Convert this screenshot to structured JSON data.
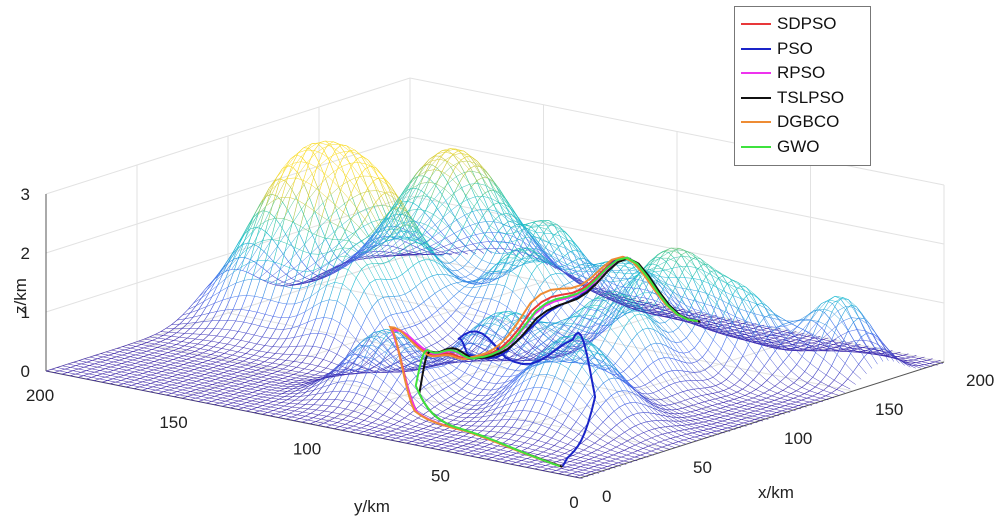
{
  "chart_data": {
    "type": "surface3d",
    "axes": {
      "x": {
        "label": "x/km",
        "range": [
          0,
          200
        ],
        "ticks": [
          0,
          50,
          100,
          150,
          200
        ]
      },
      "y": {
        "label": "y/km",
        "range": [
          0,
          200
        ],
        "ticks": [
          0,
          50,
          100,
          150,
          200
        ]
      },
      "z": {
        "label": "z/km",
        "range": [
          0,
          3
        ],
        "ticks": [
          0,
          1,
          2,
          3
        ]
      }
    },
    "grid": true,
    "legend_position": "top-right",
    "terrain_peaks": [
      {
        "x": 40,
        "y": 100,
        "h": 1.2,
        "s": 12
      },
      {
        "x": 75,
        "y": 80,
        "h": 1.3,
        "s": 13
      },
      {
        "x": 110,
        "y": 150,
        "h": 2.1,
        "s": 16
      },
      {
        "x": 100,
        "y": 175,
        "h": 2.4,
        "s": 16
      },
      {
        "x": 165,
        "y": 160,
        "h": 2.5,
        "s": 18
      },
      {
        "x": 160,
        "y": 120,
        "h": 1.4,
        "s": 11
      },
      {
        "x": 130,
        "y": 110,
        "h": 1.5,
        "s": 11
      },
      {
        "x": 55,
        "y": 40,
        "h": 1.5,
        "s": 14
      },
      {
        "x": 140,
        "y": 60,
        "h": 1.9,
        "s": 14
      },
      {
        "x": 100,
        "y": 55,
        "h": 1.6,
        "s": 13
      },
      {
        "x": 165,
        "y": 15,
        "h": 1.3,
        "s": 10
      },
      {
        "x": 80,
        "y": 140,
        "h": 1.2,
        "s": 10
      },
      {
        "x": 155,
        "y": 90,
        "h": 1.2,
        "s": 12
      },
      {
        "x": 145,
        "y": 35,
        "h": 1.0,
        "s": 10
      }
    ],
    "series": [
      {
        "name": "SDPSO",
        "color": "#e8383a",
        "path": [
          [
            5,
            10
          ],
          [
            20,
            55
          ],
          [
            25,
            78
          ],
          [
            40,
            98
          ],
          [
            55,
            96
          ],
          [
            75,
            100
          ],
          [
            95,
            105
          ],
          [
            120,
            100
          ],
          [
            150,
            90
          ],
          [
            185,
            82
          ]
        ]
      },
      {
        "name": "PSO",
        "color": "#1a24c8",
        "path": [
          [
            5,
            10
          ],
          [
            15,
            15
          ],
          [
            45,
            25
          ],
          [
            62,
            45
          ],
          [
            62,
            70
          ],
          [
            68,
            92
          ],
          [
            85,
            100
          ],
          [
            110,
            100
          ],
          [
            140,
            92
          ],
          [
            185,
            82
          ]
        ]
      },
      {
        "name": "RPSO",
        "color": "#ee33ee",
        "path": [
          [
            5,
            11
          ],
          [
            20,
            55
          ],
          [
            25,
            78
          ],
          [
            39,
            97
          ],
          [
            55,
            95
          ],
          [
            75,
            99
          ],
          [
            95,
            104
          ],
          [
            120,
            99
          ],
          [
            150,
            89
          ],
          [
            185,
            81
          ]
        ]
      },
      {
        "name": "TSLPSO",
        "color": "#111111",
        "path": [
          [
            5,
            10
          ],
          [
            15,
            40
          ],
          [
            22,
            62
          ],
          [
            32,
            82
          ],
          [
            55,
            93
          ],
          [
            75,
            98
          ],
          [
            95,
            103
          ],
          [
            120,
            98
          ],
          [
            150,
            88
          ],
          [
            185,
            81
          ]
        ]
      },
      {
        "name": "DGBCO",
        "color": "#ee8c34",
        "path": [
          [
            5,
            11
          ],
          [
            20,
            56
          ],
          [
            25,
            79
          ],
          [
            41,
            99
          ],
          [
            56,
            97
          ],
          [
            76,
            101
          ],
          [
            96,
            106
          ],
          [
            121,
            101
          ],
          [
            151,
            91
          ],
          [
            185,
            82
          ]
        ]
      },
      {
        "name": "GWO",
        "color": "#3ee23e",
        "path": [
          [
            5,
            11
          ],
          [
            16,
            42
          ],
          [
            23,
            64
          ],
          [
            33,
            84
          ],
          [
            56,
            94
          ],
          [
            76,
            99
          ],
          [
            96,
            104
          ],
          [
            121,
            99
          ],
          [
            151,
            89
          ],
          [
            185,
            82
          ]
        ]
      }
    ]
  }
}
